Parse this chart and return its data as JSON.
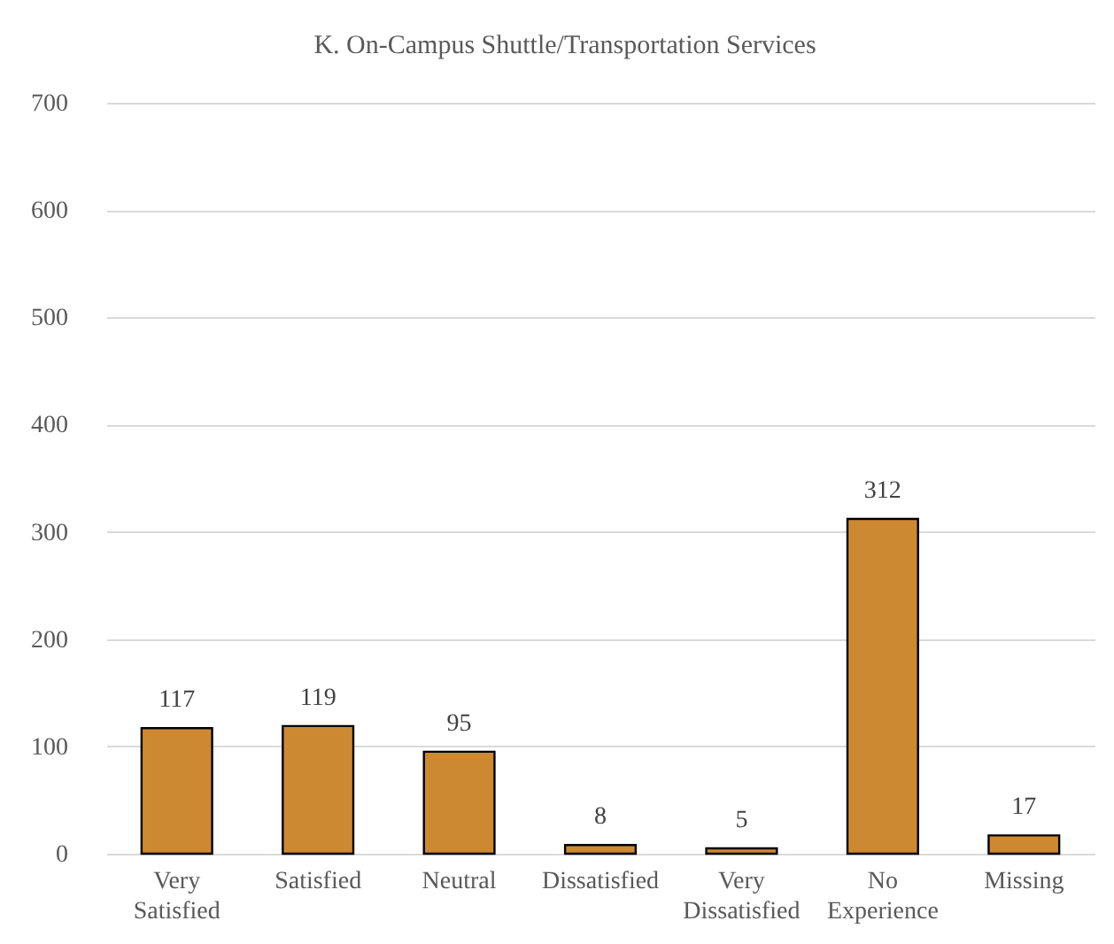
{
  "chart_data": {
    "type": "bar",
    "title": "K. On-Campus Shuttle/Transportation Services",
    "categories": [
      "Very Satisfied",
      "Satisfied",
      "Neutral",
      "Dissatisfied",
      "Very Dissatisfied",
      "No Experience",
      "Missing"
    ],
    "values": [
      117,
      119,
      95,
      8,
      5,
      312,
      17
    ],
    "color": "#cd8932",
    "ylim": [
      0,
      700
    ],
    "yticks": [
      0,
      100,
      200,
      300,
      400,
      500,
      600,
      700
    ],
    "grid": "y",
    "data_labels": true
  }
}
